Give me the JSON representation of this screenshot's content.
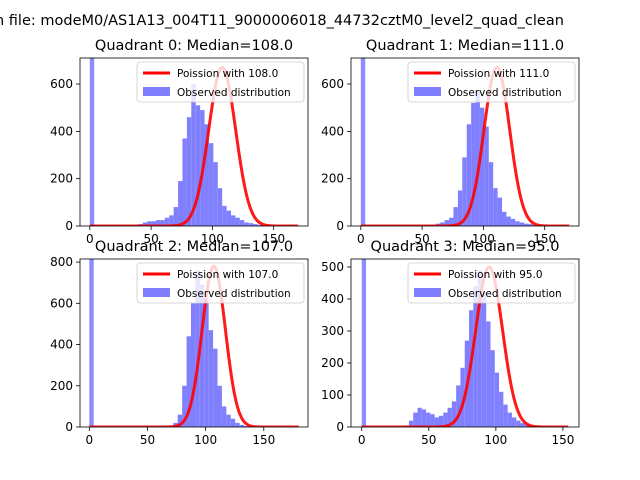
{
  "figure": {
    "suptitle": "n file: modeM0/AS1A13_004T11_9000006018_44732cztM0_level2_quad_clean"
  },
  "colors": {
    "hist": "#8080ff",
    "fit": "#ff0000",
    "hist_zero": "#7878ff"
  },
  "chart_data": [
    {
      "type": "bar",
      "title": "Quadrant 0: Median=108.0",
      "xlabel": "",
      "ylabel": "",
      "xlim": [
        -8,
        178
      ],
      "ylim": [
        0,
        710
      ],
      "xticks": [
        0,
        50,
        100,
        150
      ],
      "yticks": [
        0,
        200,
        400,
        600
      ],
      "median": 108.0,
      "legend": {
        "position": "top-right"
      },
      "series": [
        {
          "name": "Poission with 108.0",
          "kind": "line",
          "amplitude": 670,
          "mean": 108,
          "sigma": 11
        },
        {
          "name": "Observed distribution",
          "kind": "histogram",
          "bin_start": 0,
          "bin_width": 3.6,
          "values": [
            720,
            0,
            0,
            0,
            0,
            0,
            0,
            0,
            0,
            5,
            5,
            8,
            15,
            20,
            20,
            25,
            25,
            35,
            45,
            80,
            190,
            370,
            460,
            600,
            510,
            490,
            430,
            350,
            270,
            160,
            85,
            65,
            45,
            35,
            25,
            15,
            12,
            8,
            5,
            3,
            2
          ]
        }
      ]
    },
    {
      "type": "bar",
      "title": "Quadrant 1: Median=111.0",
      "xlabel": "",
      "ylabel": "",
      "xlim": [
        -8,
        178
      ],
      "ylim": [
        0,
        710
      ],
      "xticks": [
        0,
        50,
        100,
        150
      ],
      "yticks": [
        0,
        200,
        400,
        600
      ],
      "median": 111.0,
      "legend": {
        "position": "top-right"
      },
      "series": [
        {
          "name": "Poission with 111.0",
          "kind": "line",
          "amplitude": 670,
          "mean": 111,
          "sigma": 10.5
        },
        {
          "name": "Observed distribution",
          "kind": "histogram",
          "bin_start": 0,
          "bin_width": 3.6,
          "values": [
            720,
            0,
            0,
            0,
            0,
            0,
            0,
            0,
            0,
            0,
            0,
            0,
            0,
            0,
            0,
            0,
            5,
            10,
            15,
            25,
            35,
            80,
            150,
            290,
            430,
            520,
            570,
            500,
            420,
            270,
            160,
            120,
            60,
            40,
            30,
            20,
            15,
            10,
            8,
            4,
            2
          ]
        }
      ]
    },
    {
      "type": "bar",
      "title": "Quadrant 2: Median=107.0",
      "xlabel": "",
      "ylabel": "",
      "xlim": [
        -8,
        188
      ],
      "ylim": [
        0,
        815
      ],
      "xticks": [
        0,
        50,
        100,
        150
      ],
      "yticks": [
        0,
        200,
        400,
        600,
        800
      ],
      "median": 107.0,
      "legend": {
        "position": "top-right"
      },
      "series": [
        {
          "name": "Poission with 107.0",
          "kind": "line",
          "amplitude": 780,
          "mean": 107,
          "sigma": 10
        },
        {
          "name": "Observed distribution",
          "kind": "histogram",
          "bin_start": 0,
          "bin_width": 3.8,
          "values": [
            830,
            0,
            0,
            0,
            0,
            0,
            0,
            0,
            0,
            0,
            0,
            0,
            0,
            0,
            0,
            0,
            0,
            0,
            5,
            20,
            60,
            200,
            440,
            600,
            760,
            690,
            620,
            470,
            380,
            200,
            100,
            60,
            40,
            20,
            10,
            5,
            3,
            2
          ]
        }
      ]
    },
    {
      "type": "bar",
      "title": "Quadrant 3: Median=95.0",
      "xlabel": "",
      "ylabel": "",
      "xlim": [
        -8,
        162
      ],
      "ylim": [
        0,
        525
      ],
      "xticks": [
        0,
        50,
        100,
        150
      ],
      "yticks": [
        0,
        100,
        200,
        300,
        400,
        500
      ],
      "median": 95.0,
      "legend": {
        "position": "top-right"
      },
      "series": [
        {
          "name": "Poission with 95.0",
          "kind": "line",
          "amplitude": 500,
          "mean": 95,
          "sigma": 10
        },
        {
          "name": "Observed distribution",
          "kind": "histogram",
          "bin_start": 0,
          "bin_width": 3.2,
          "values": [
            530,
            0,
            0,
            0,
            0,
            0,
            0,
            0,
            0,
            0,
            5,
            20,
            45,
            60,
            55,
            45,
            40,
            30,
            35,
            45,
            60,
            80,
            130,
            185,
            270,
            365,
            440,
            490,
            420,
            330,
            240,
            170,
            110,
            70,
            45,
            30,
            20,
            12,
            8,
            5,
            3,
            2,
            1,
            1,
            1
          ]
        }
      ]
    }
  ]
}
